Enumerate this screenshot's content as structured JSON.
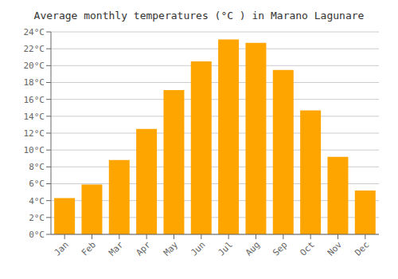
{
  "chart_data": {
    "type": "bar",
    "title": "Average monthly temperatures (°C ) in Marano Lagunare",
    "categories": [
      "Jan",
      "Feb",
      "Mar",
      "Apr",
      "May",
      "Jun",
      "Jul",
      "Aug",
      "Sep",
      "Oct",
      "Nov",
      "Dec"
    ],
    "values": [
      4.3,
      5.9,
      8.8,
      12.5,
      17.1,
      20.5,
      23.1,
      22.7,
      19.5,
      14.7,
      9.2,
      5.2
    ],
    "color": "#FFA500",
    "ylim": [
      0,
      24
    ],
    "yticks": [
      {
        "value": 0,
        "label": "0°C"
      },
      {
        "value": 2,
        "label": "2°C"
      },
      {
        "value": 4,
        "label": "4°C"
      },
      {
        "value": 6,
        "label": "6°C"
      },
      {
        "value": 8,
        "label": "8°C"
      },
      {
        "value": 10,
        "label": "10°C"
      },
      {
        "value": 12,
        "label": "12°C"
      },
      {
        "value": 14,
        "label": "14°C"
      },
      {
        "value": 16,
        "label": "16°C"
      },
      {
        "value": 18,
        "label": "18°C"
      },
      {
        "value": 20,
        "label": "20°C"
      },
      {
        "value": 22,
        "label": "22°C"
      },
      {
        "value": 24,
        "label": "24°C"
      }
    ],
    "grid": true
  }
}
